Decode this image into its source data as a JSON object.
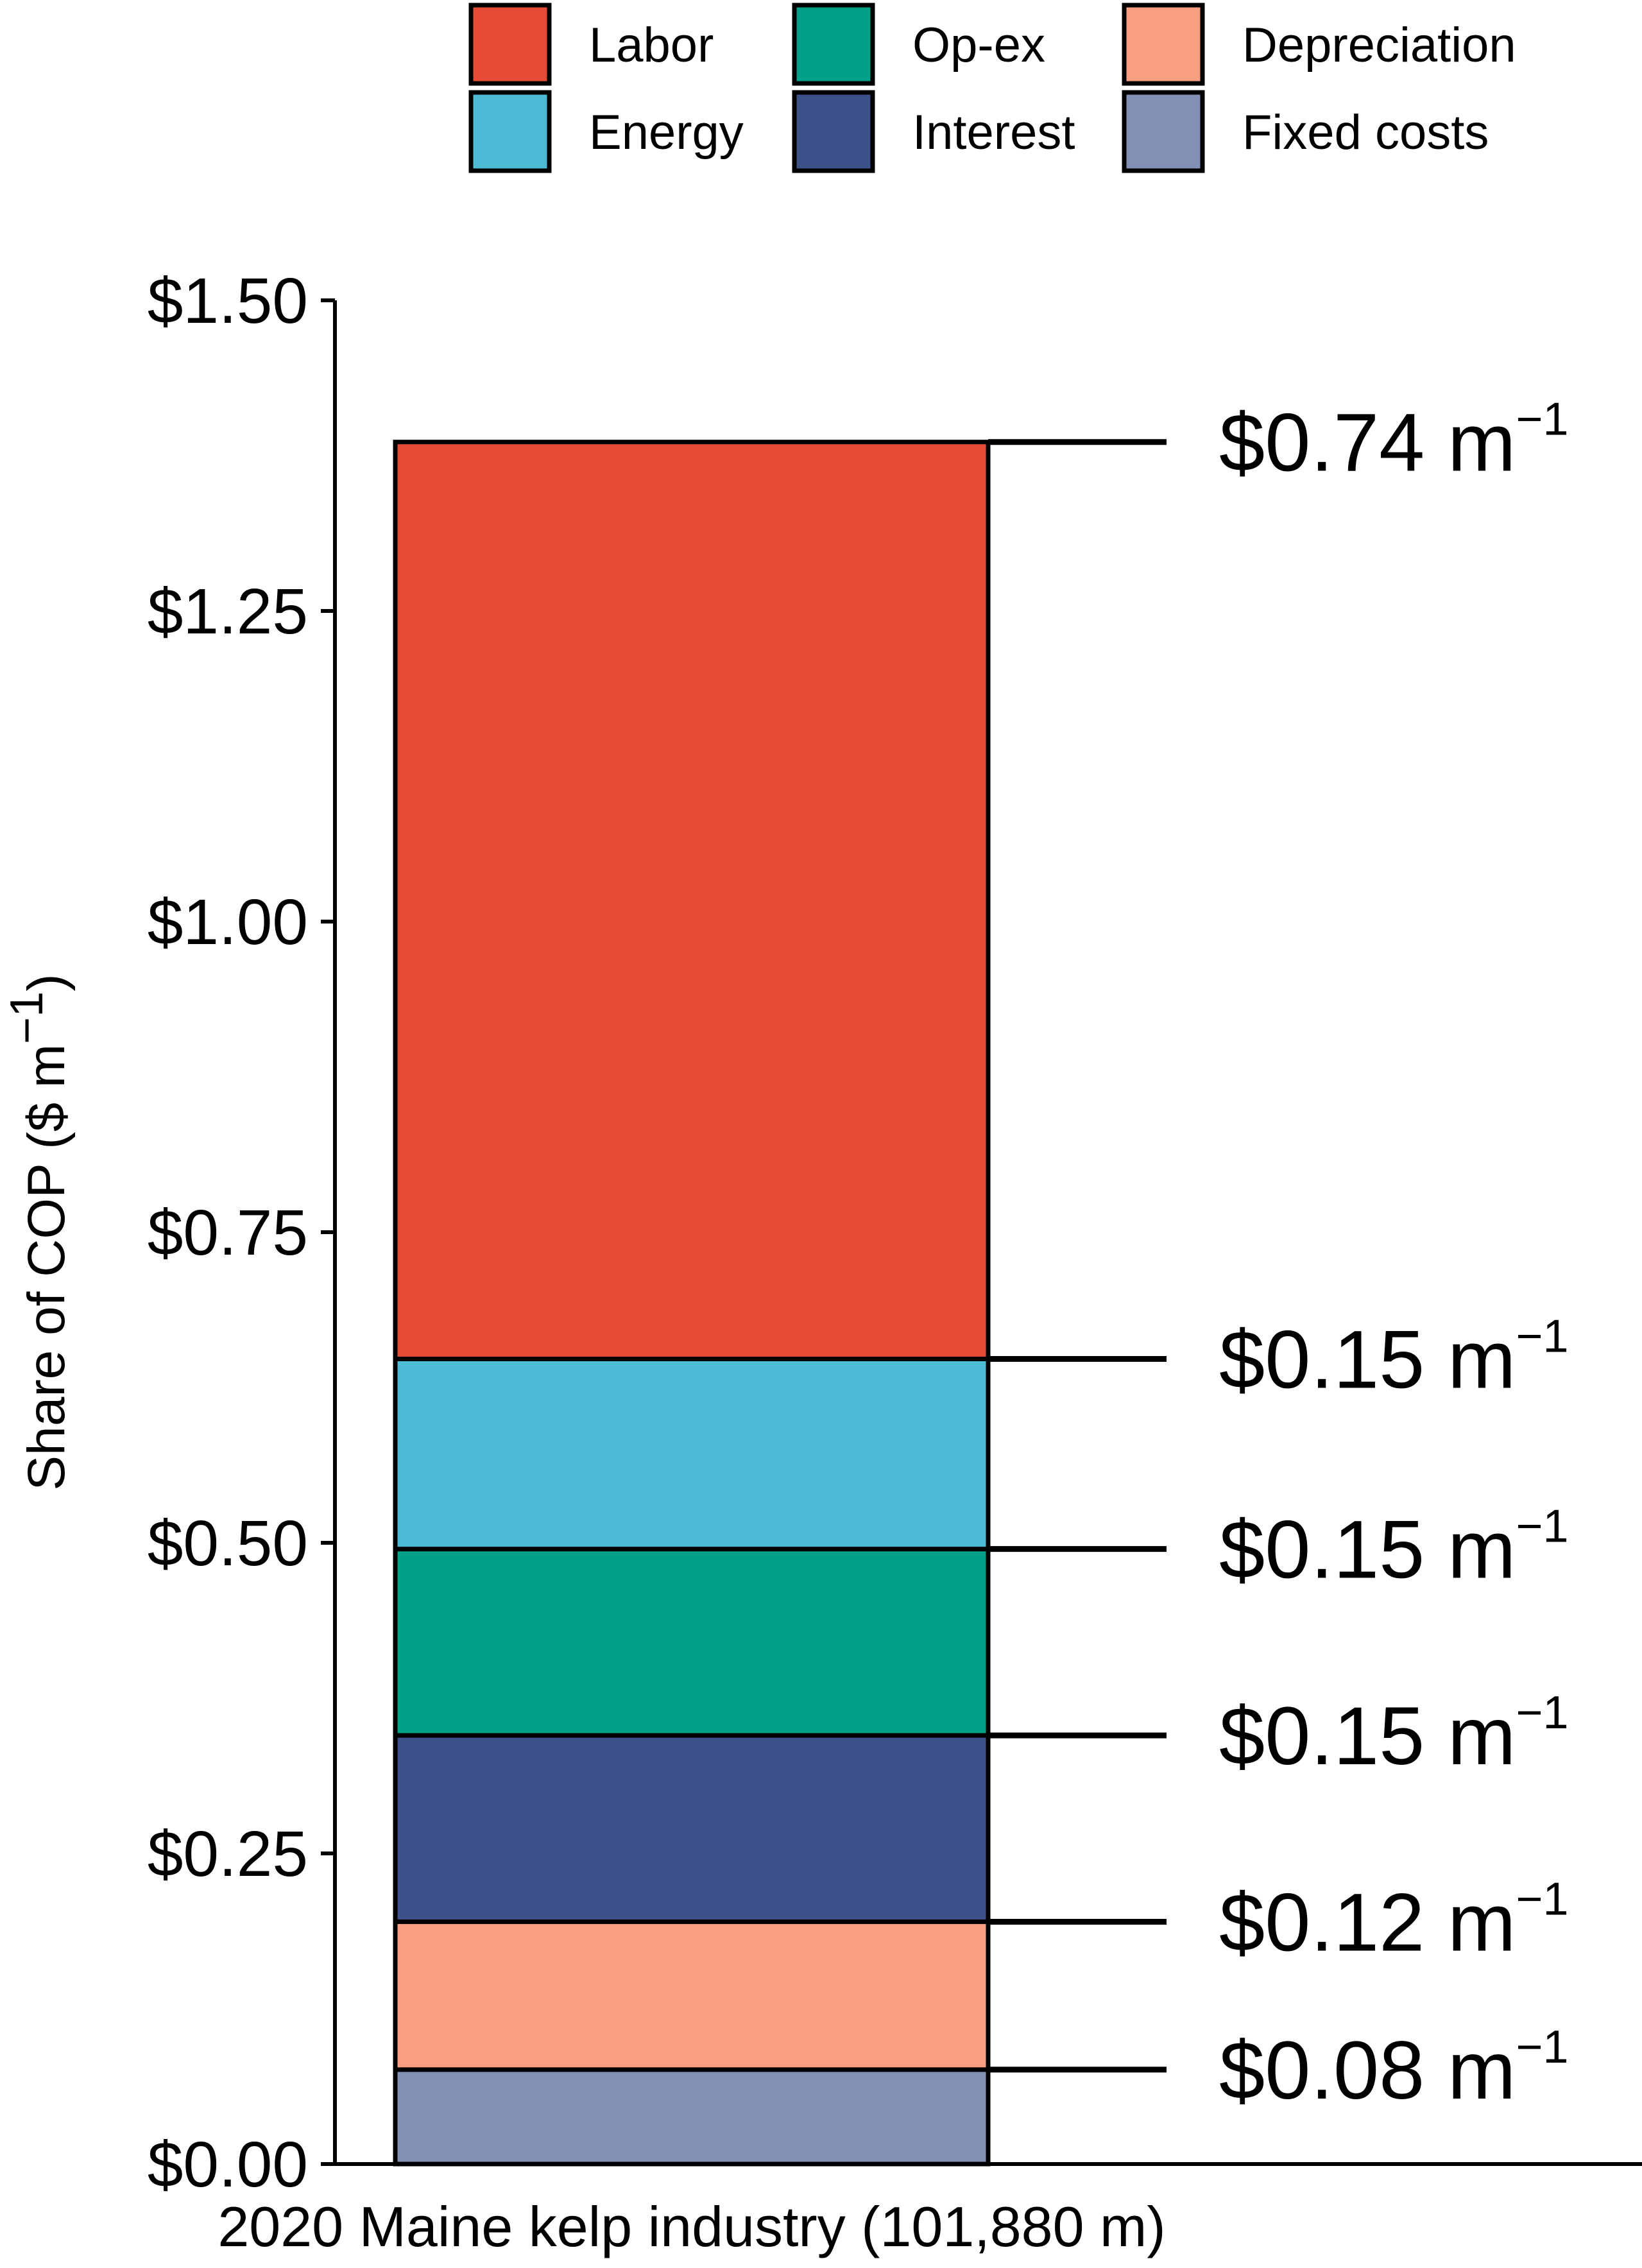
{
  "chart_data": {
    "type": "bar",
    "stacked": true,
    "categories": [
      "2020 Maine kelp industry (101,880 m)"
    ],
    "ylabel": "Share of COP ($ m",
    "ylabel_sup": "−1",
    "ylabel_close": ")",
    "ylim": [
      0,
      1.5
    ],
    "yticks": [
      {
        "value": 0.0,
        "label": "$0.00"
      },
      {
        "value": 0.25,
        "label": "$0.25"
      },
      {
        "value": 0.5,
        "label": "$0.50"
      },
      {
        "value": 0.75,
        "label": "$0.75"
      },
      {
        "value": 1.0,
        "label": "$1.00"
      },
      {
        "value": 1.25,
        "label": "$1.25"
      },
      {
        "value": 1.5,
        "label": "$1.50"
      }
    ],
    "series": [
      {
        "name": "Fixed costs",
        "color": "#8390b5",
        "value": 0.076,
        "label": "$0.08 m",
        "sup": "−1"
      },
      {
        "name": "Depreciation",
        "color": "#f79f80",
        "value": 0.119,
        "label": "$0.12 m",
        "sup": "−1"
      },
      {
        "name": "Interest",
        "color": "#3c5189",
        "value": 0.15,
        "label": "$0.15 m",
        "sup": "−1"
      },
      {
        "name": "Op-ex",
        "color": "#00a186",
        "value": 0.15,
        "label": "$0.15 m",
        "sup": "−1"
      },
      {
        "name": "Energy",
        "color": "#4dbbd6",
        "value": 0.153,
        "label": "$0.15 m",
        "sup": "−1"
      },
      {
        "name": "Labor",
        "color": "#e64b35",
        "value": 0.738,
        "label": "$0.74 m",
        "sup": "−1"
      }
    ],
    "legend": {
      "placement": "top",
      "order": [
        "Labor",
        "Op-ex",
        "Depreciation",
        "Energy",
        "Interest",
        "Fixed costs"
      ]
    }
  }
}
